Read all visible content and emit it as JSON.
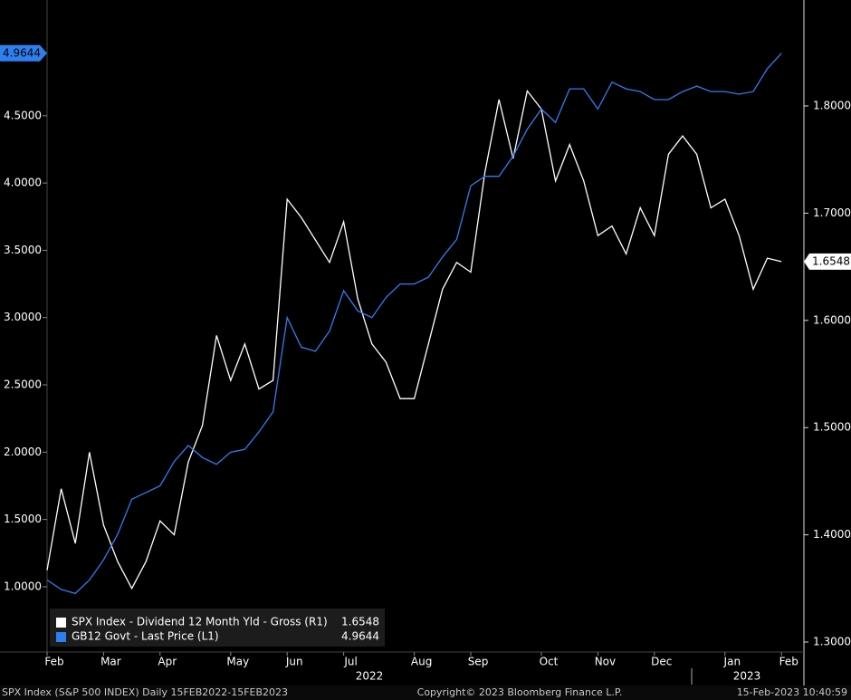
{
  "chart_data": {
    "type": "line",
    "categories": [
      "Feb",
      null,
      null,
      null,
      "Mar",
      null,
      null,
      null,
      "Apr",
      null,
      null,
      null,
      null,
      "May",
      null,
      null,
      null,
      "Jun",
      null,
      null,
      null,
      "Jul",
      null,
      null,
      null,
      null,
      "Aug",
      null,
      null,
      null,
      "Sep",
      null,
      null,
      null,
      null,
      "Oct",
      null,
      null,
      null,
      "Nov",
      null,
      null,
      null,
      "Dec",
      null,
      null,
      null,
      null,
      "Jan",
      null,
      null,
      null,
      "Feb"
    ],
    "years": [
      "2022",
      "2023"
    ],
    "series": [
      {
        "name": "SPX Index - Dividend 12 Month Yld - Gross (R1)",
        "color": "#ffffff",
        "axis": "y2",
        "values": [
          1.367,
          1.443,
          1.392,
          1.477,
          1.409,
          1.375,
          1.35,
          1.375,
          1.413,
          1.4,
          1.468,
          1.502,
          1.586,
          1.544,
          1.578,
          1.536,
          1.544,
          1.713,
          1.696,
          1.675,
          1.654,
          1.692,
          1.62,
          1.578,
          1.561,
          1.527,
          1.527,
          1.578,
          1.629,
          1.654,
          1.645,
          1.738,
          1.806,
          1.751,
          1.814,
          1.797,
          1.73,
          1.764,
          1.73,
          1.679,
          1.688,
          1.662,
          1.705,
          1.679,
          1.755,
          1.772,
          1.755,
          1.705,
          1.713,
          1.679,
          1.629,
          1.658,
          1.6548
        ],
        "value_labels": [
          null,
          null,
          null,
          null,
          null,
          null,
          null,
          null,
          null,
          null,
          null,
          null,
          null,
          null,
          null,
          null,
          null,
          null,
          null,
          null,
          null,
          null,
          null,
          null,
          null,
          null,
          null,
          null,
          null,
          null,
          null,
          null,
          null,
          null,
          null,
          null,
          null,
          null,
          null,
          null,
          null,
          null,
          null,
          null,
          null,
          null,
          null,
          null,
          null,
          null,
          null,
          null,
          "1.6548"
        ]
      },
      {
        "name": "GB12 Govt - Last Price (L1)",
        "color": "#2f7ff0",
        "values": [
          1.05,
          0.98,
          0.95,
          1.05,
          1.2,
          1.39,
          1.65,
          1.7,
          1.75,
          1.93,
          2.05,
          1.96,
          1.91,
          2.0,
          2.02,
          2.15,
          2.3,
          3.0,
          2.78,
          2.75,
          2.9,
          3.2,
          3.05,
          3.0,
          3.15,
          3.25,
          3.25,
          3.3,
          3.45,
          3.58,
          3.98,
          4.05,
          4.05,
          4.2,
          4.4,
          4.55,
          4.45,
          4.7,
          4.7,
          4.55,
          4.75,
          4.7,
          4.68,
          4.62,
          4.62,
          4.68,
          4.72,
          4.68,
          4.68,
          4.66,
          4.68,
          4.85,
          4.9644
        ],
        "value_labels": [
          null,
          null,
          null,
          null,
          null,
          null,
          null,
          null,
          null,
          null,
          null,
          null,
          null,
          null,
          null,
          null,
          null,
          null,
          null,
          null,
          null,
          null,
          null,
          null,
          null,
          null,
          null,
          null,
          null,
          null,
          null,
          null,
          null,
          null,
          null,
          null,
          null,
          null,
          null,
          null,
          null,
          null,
          null,
          null,
          null,
          null,
          null,
          null,
          null,
          null,
          null,
          null,
          "4.9644"
        ]
      }
    ],
    "ylim": [
      0.515,
      5.36
    ],
    "yticks": [
      {
        "value": 1,
        "label": "1.0000"
      },
      {
        "value": 1.5,
        "label": "1.5000"
      },
      {
        "value": 2,
        "label": "2.0000"
      },
      {
        "value": 2.5,
        "label": "2.5000"
      },
      {
        "value": 3,
        "label": "3.0000"
      },
      {
        "value": 3.5,
        "label": "3.5000"
      },
      {
        "value": 4,
        "label": "4.0000"
      },
      {
        "value": 4.5,
        "label": "4.5000"
      }
    ],
    "y2lim": [
      1.2907,
      1.8988
    ],
    "y2ticks": [
      {
        "value": 1.3,
        "label": "1.3000"
      },
      {
        "value": 1.4,
        "label": "1.4000"
      },
      {
        "value": 1.5,
        "label": "1.5000"
      },
      {
        "value": 1.6,
        "label": "1.6000"
      },
      {
        "value": 1.7,
        "label": "1.7000"
      },
      {
        "value": 1.8,
        "label": "1.8000"
      }
    ],
    "legend": "bottom-left",
    "footer": {
      "left": "SPX Index (S&P 500 INDEX)  Daily 15FEB2022-15FEB2023",
      "center": "Copyright© 2023 Bloomberg Finance L.P.",
      "right": "15-Feb-2023 10:40:59"
    }
  }
}
